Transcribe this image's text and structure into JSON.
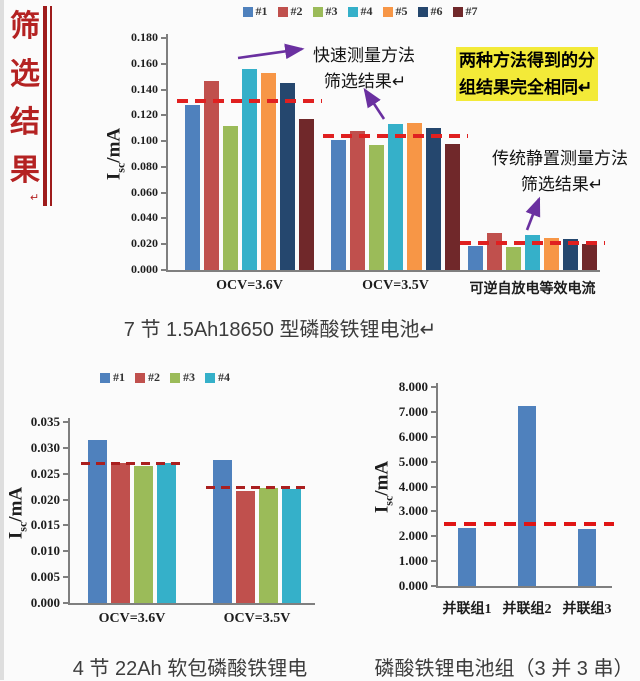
{
  "sidebar": {
    "title_chars": [
      "筛",
      "选",
      "结",
      "果"
    ],
    "return_mark": "↵",
    "color": "#b42222"
  },
  "annotations": {
    "fast_line1": "快速测量方法",
    "fast_line2": "筛选结果↵",
    "highlight_line1": "两种方法得到的分",
    "highlight_line2": "组结果完全相同↵",
    "highlight_bg": "#f3ea38",
    "trad_line1": "传统静置测量方法",
    "trad_line2": "筛选结果↵",
    "arrow_color": "#6a30a0"
  },
  "chart_data": [
    {
      "id": "chart-top",
      "type": "bar",
      "title": "7 节 1.5Ah18650 型磷酸铁锂电池↵",
      "ylabel": {
        "base": "I",
        "sub": "sc",
        "rest": "/mA"
      },
      "ylim": [
        0,
        0.18
      ],
      "ytick_step": 0.02,
      "ytick_decimals": 3,
      "grid": false,
      "legend_position": "top",
      "categories": [
        "OCV=3.6V",
        "OCV=3.5V",
        "可逆自放电等效电流"
      ],
      "series": [
        {
          "name": "#1",
          "color": "#4f81bd",
          "values": [
            0.128,
            0.101,
            0.019
          ]
        },
        {
          "name": "#2",
          "color": "#c0504d",
          "values": [
            0.147,
            0.108,
            0.029
          ]
        },
        {
          "name": "#3",
          "color": "#9bbb59",
          "values": [
            0.112,
            0.097,
            0.018
          ]
        },
        {
          "name": "#4",
          "color": "#35b0c9",
          "values": [
            0.156,
            0.113,
            0.027
          ]
        },
        {
          "name": "#5",
          "color": "#f79646",
          "values": [
            0.153,
            0.114,
            0.025
          ]
        },
        {
          "name": "#6",
          "color": "#25476e",
          "values": [
            0.145,
            0.11,
            0.024
          ]
        },
        {
          "name": "#7",
          "color": "#70282a",
          "values": [
            0.117,
            0.098,
            0.02
          ]
        }
      ],
      "thresholds": [
        0.131,
        0.104,
        0.021
      ],
      "threshold_color": "#e02020",
      "threshold_style": "dashed"
    },
    {
      "id": "chart-bl",
      "type": "bar",
      "title": "4 节 22Ah 软包磷酸铁锂电",
      "ylabel": {
        "base": "I",
        "sub": "sc",
        "rest": "/mA"
      },
      "ylim": [
        0,
        0.035
      ],
      "ytick_step": 0.005,
      "ytick_decimals": 3,
      "grid": false,
      "legend_position": "top",
      "categories": [
        "OCV=3.6V",
        "OCV=3.5V"
      ],
      "series": [
        {
          "name": "#1",
          "color": "#4f81bd",
          "values": [
            0.0315,
            0.0277
          ]
        },
        {
          "name": "#2",
          "color": "#c0504d",
          "values": [
            0.027,
            0.0216
          ]
        },
        {
          "name": "#3",
          "color": "#9bbb59",
          "values": [
            0.0265,
            0.0222
          ]
        },
        {
          "name": "#4",
          "color": "#35b0c9",
          "values": [
            0.027,
            0.0221
          ]
        }
      ],
      "thresholds": [
        0.027,
        0.0223
      ],
      "threshold_color": "#aa1f1f",
      "threshold_style": "dashed"
    },
    {
      "id": "chart-br",
      "type": "bar",
      "title": "磷酸铁锂电池组（3 并 3 串）",
      "ylabel": {
        "base": "I",
        "sub": "sc",
        "rest": "/mA"
      },
      "ylim": [
        0,
        8
      ],
      "ytick_step": 1,
      "ytick_decimals": 3,
      "grid": false,
      "legend_position": "none",
      "categories": [
        "并联组1",
        "并联组2",
        "并联组3"
      ],
      "series": [
        {
          "name": "",
          "color": "#4f81bd",
          "values": [
            2.35,
            7.25,
            2.3
          ]
        }
      ],
      "thresholds": [
        2.5
      ],
      "threshold_span": "plot",
      "threshold_color": "#e01515",
      "threshold_style": "dashed"
    }
  ]
}
